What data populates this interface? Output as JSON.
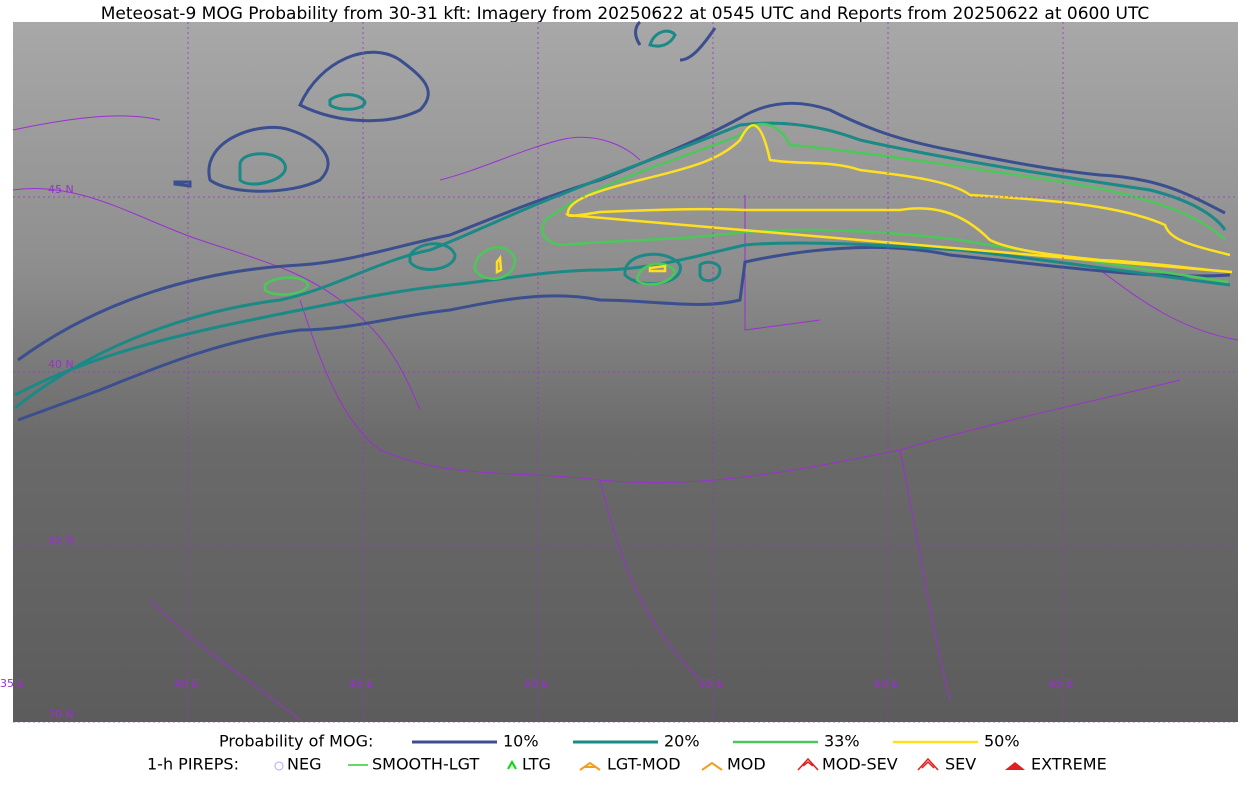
{
  "title": "Meteosat-9 MOG Probability from 30-31 kft: Imagery from 20250622 at 0545 UTC and Reports from 20250622 at 0600 UTC",
  "grid_labels": {
    "lat": [
      "45 N",
      "40 N",
      "35 N",
      "30 N"
    ],
    "lon": [
      "35 E",
      "40 E",
      "45 E",
      "50 E",
      "55 E",
      "60 E",
      "65 E"
    ]
  },
  "legend": {
    "probability": {
      "title": "Probability of MOG:",
      "levels": [
        "10%",
        "20%",
        "33%",
        "50%"
      ]
    },
    "pireps": {
      "title": "1-h PIREPS:",
      "items": [
        "NEG",
        "SMOOTH-LGT",
        "LTG",
        "LGT-MOD",
        "MOD",
        "MOD-SEV",
        "SEV",
        "EXTREME"
      ]
    }
  }
}
